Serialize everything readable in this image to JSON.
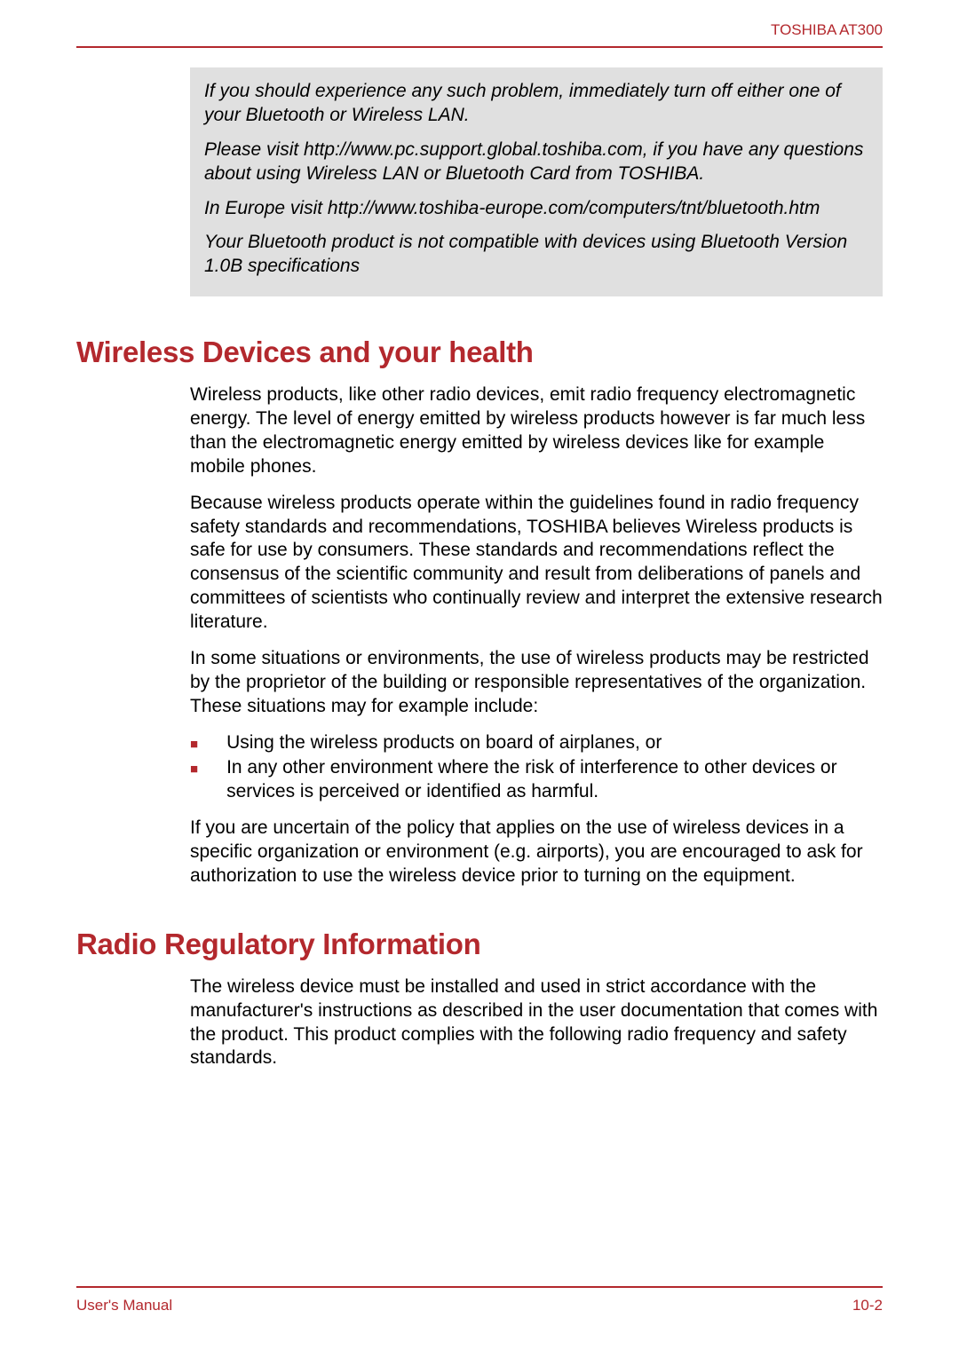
{
  "header": {
    "product": "TOSHIBA AT300"
  },
  "colors": {
    "accent": "#b3282d",
    "note_bg": "#e0e0e0",
    "text": "#000000",
    "page_bg": "#ffffff"
  },
  "note_box": {
    "paragraphs": [
      "If you should experience any such problem, immediately turn off either one of your Bluetooth or Wireless LAN.",
      "Please visit http://www.pc.support.global.toshiba.com, if you have any questions about using Wireless LAN or Bluetooth Card from TOSHIBA.",
      "In Europe visit http://www.toshiba-europe.com/computers/tnt/bluetooth.htm",
      "Your Bluetooth product is not compatible with devices using Bluetooth Version 1.0B specifications"
    ]
  },
  "sections": {
    "wireless_health": {
      "heading": "Wireless Devices and your health",
      "paragraphs_before": [
        "Wireless products, like other radio devices, emit radio frequency electromagnetic energy. The level of energy emitted by wireless products however is far much less than the electromagnetic energy emitted by wireless devices like for example mobile phones.",
        "Because wireless products operate within the guidelines found in radio frequency safety standards and recommendations, TOSHIBA believes Wireless products is safe for use by consumers. These standards and recommendations reflect the consensus of the scientific community and result from deliberations of panels and committees of scientists who continually review and interpret the extensive research literature.",
        "In some situations or environments, the use of wireless products may be restricted by the proprietor of the building or responsible representatives of the organization. These situations may for example include:"
      ],
      "bullets": [
        "Using the wireless products on board of airplanes, or",
        "In any other environment where the risk of interference to other devices or services is perceived or identified as harmful."
      ],
      "paragraphs_after": [
        "If you are uncertain of the policy that applies on the use of wireless devices in a specific organization or environment (e.g. airports), you are encouraged to ask for authorization to use the wireless device prior to turning on the equipment."
      ]
    },
    "radio_regulatory": {
      "heading": "Radio Regulatory Information",
      "paragraphs": [
        "The wireless device must be installed and used in strict accordance with the manufacturer's instructions as described in the user documentation that comes with the product. This product complies with the following radio frequency and safety standards."
      ]
    }
  },
  "footer": {
    "left": "User's Manual",
    "right": "10-2"
  }
}
